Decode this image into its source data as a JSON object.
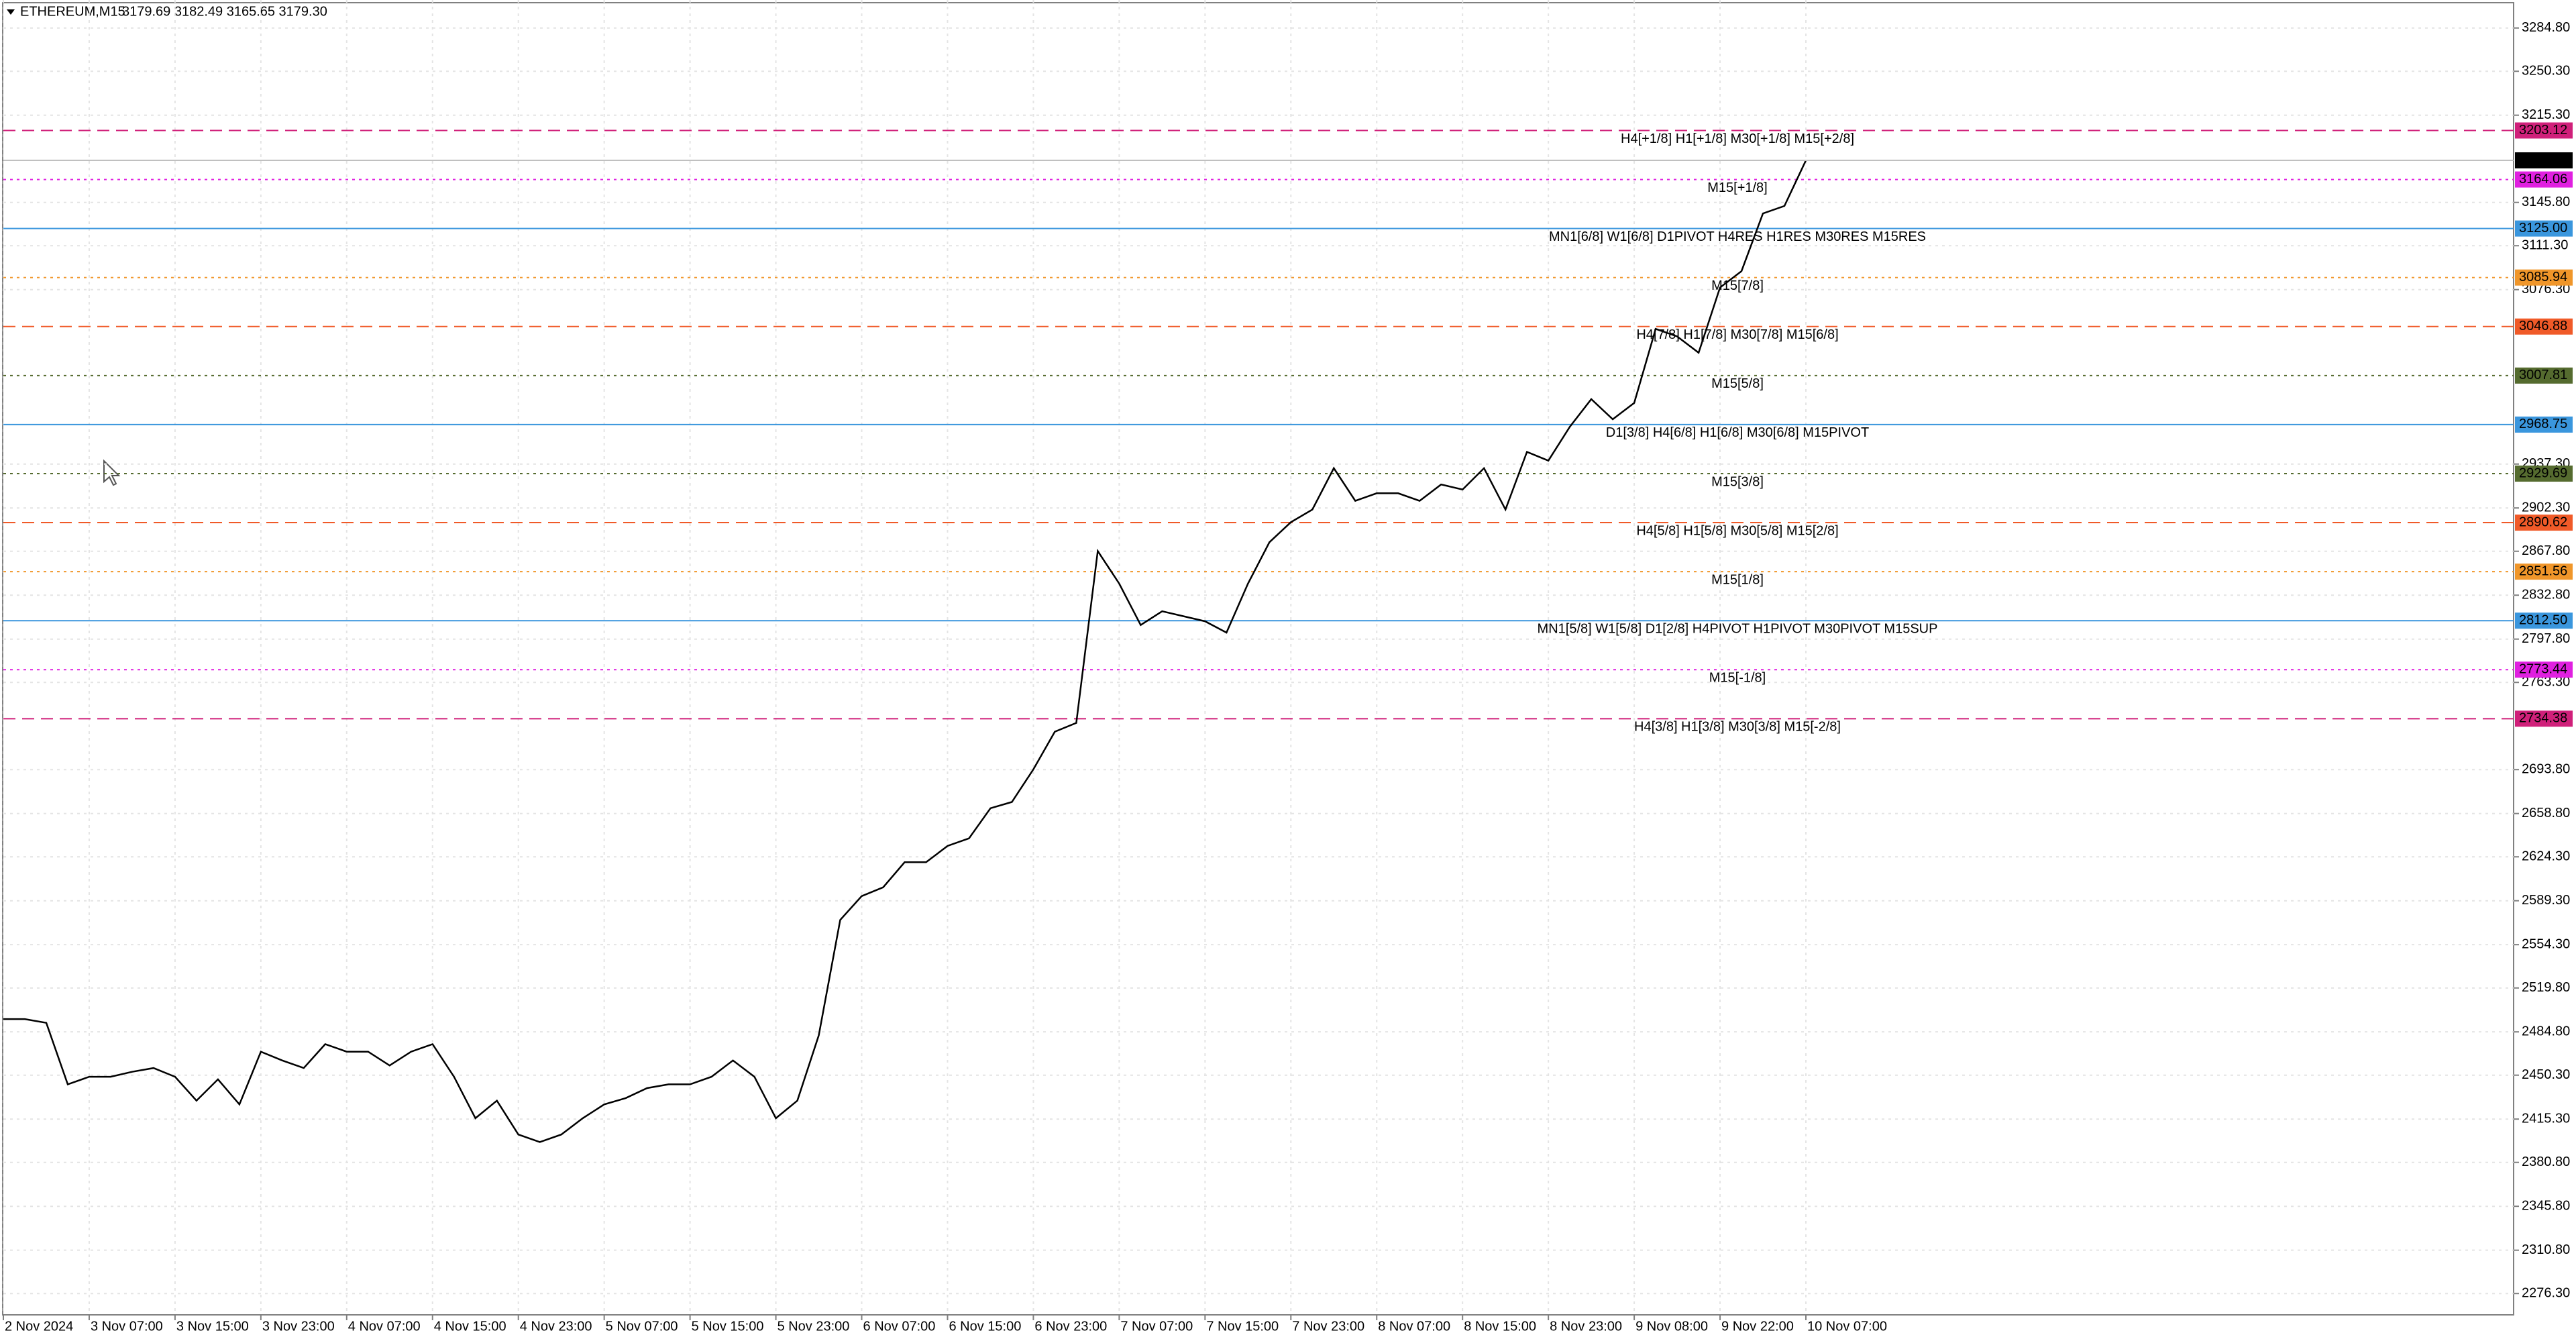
{
  "chart_data": {
    "type": "line",
    "title": "ETHEREUM,M15",
    "ohlc": "3179.69 3182.49 3165.65 3179.30",
    "color": "#000000",
    "grid": true,
    "ylim": [
      2259.3,
      3307.1
    ],
    "yticks": [
      {
        "value": 3284.8,
        "label": "3284.80"
      },
      {
        "value": 3250.3,
        "label": "3250.30"
      },
      {
        "value": 3215.3,
        "label": "3215.30"
      },
      {
        "value": 3145.8,
        "label": "3145.80"
      },
      {
        "value": 3111.3,
        "label": "3111.30"
      },
      {
        "value": 3076.3,
        "label": "3076.30"
      },
      {
        "value": 2937.3,
        "label": "2937.30"
      },
      {
        "value": 2902.3,
        "label": "2902.30"
      },
      {
        "value": 2867.8,
        "label": "2867.80"
      },
      {
        "value": 2832.8,
        "label": "2832.80"
      },
      {
        "value": 2797.8,
        "label": "2797.80"
      },
      {
        "value": 2763.3,
        "label": "2763.30"
      },
      {
        "value": 2693.8,
        "label": "2693.80"
      },
      {
        "value": 2658.8,
        "label": "2658.80"
      },
      {
        "value": 2624.3,
        "label": "2624.30"
      },
      {
        "value": 2589.3,
        "label": "2589.30"
      },
      {
        "value": 2554.3,
        "label": "2554.30"
      },
      {
        "value": 2519.8,
        "label": "2519.80"
      },
      {
        "value": 2484.8,
        "label": "2484.80"
      },
      {
        "value": 2450.3,
        "label": "2450.30"
      },
      {
        "value": 2415.3,
        "label": "2415.30"
      },
      {
        "value": 2380.8,
        "label": "2380.80"
      },
      {
        "value": 2345.8,
        "label": "2345.80"
      },
      {
        "value": 2310.8,
        "label": "2310.80"
      },
      {
        "value": 2276.3,
        "label": "2276.30"
      }
    ],
    "categories": [
      "2 Nov 2024",
      null,
      null,
      null,
      "3 Nov 07:00",
      null,
      null,
      null,
      "3 Nov 15:00",
      null,
      null,
      null,
      "3 Nov 23:00",
      null,
      null,
      null,
      "4 Nov 07:00",
      null,
      null,
      null,
      "4 Nov 15:00",
      null,
      null,
      null,
      "4 Nov 23:00",
      null,
      null,
      null,
      "5 Nov 07:00",
      null,
      null,
      null,
      "5 Nov 15:00",
      null,
      null,
      null,
      "5 Nov 23:00",
      null,
      null,
      null,
      "6 Nov 07:00",
      null,
      null,
      null,
      "6 Nov 15:00",
      null,
      null,
      null,
      "6 Nov 23:00",
      null,
      null,
      null,
      "7 Nov 07:00",
      null,
      null,
      null,
      "7 Nov 15:00",
      null,
      null,
      null,
      "7 Nov 23:00",
      null,
      null,
      null,
      "8 Nov 07:00",
      null,
      null,
      null,
      "8 Nov 15:00",
      null,
      null,
      null,
      "8 Nov 23:00",
      null,
      null,
      null,
      "9 Nov 08:00",
      null,
      null,
      null,
      "9 Nov 22:00",
      null,
      null,
      null,
      "10 Nov 07:00"
    ],
    "values": [
      2495,
      2495,
      2492,
      2443,
      2449,
      2449,
      2453,
      2456,
      2449,
      2430,
      2447,
      2427,
      2469,
      2462,
      2456,
      2475,
      2469,
      2469,
      2458,
      2469,
      2475,
      2449,
      2416,
      2430,
      2403,
      2397,
      2403,
      2416,
      2427,
      2432,
      2440,
      2443,
      2443,
      2449,
      2462,
      2449,
      2416,
      2430,
      2482,
      2574,
      2593,
      2600,
      2620,
      2620,
      2633,
      2639,
      2663,
      2668,
      2694,
      2724,
      2731,
      2868,
      2842,
      2809,
      2820,
      2816,
      2812,
      2803,
      2842,
      2875,
      2891,
      2901,
      2934,
      2908,
      2914,
      2914,
      2908,
      2921,
      2917,
      2934,
      2901,
      2947,
      2940,
      2967,
      2989,
      2973,
      2986,
      3045,
      3039,
      3026,
      3078,
      3091,
      3137,
      3143,
      3179.3
    ],
    "last_price": {
      "value": 3179.3,
      "label": "3179.30"
    },
    "levels": [
      {
        "value": 3203.12,
        "value_label": "3203.12",
        "label": "H4[+1/8] H1[+1/8] M30[+1/8] M15[+2/8]",
        "color": "#d0207a",
        "dash": "dashed"
      },
      {
        "value": 3164.06,
        "value_label": "3164.06",
        "label": "M15[+1/8]",
        "color": "#e020e0",
        "dash": "dotted"
      },
      {
        "value": 3125.0,
        "value_label": "3125.00",
        "label": "MN1[6/8] W1[6/8] D1PIVOT H4RES H1RES M30RES M15RES",
        "color": "#3a96dd",
        "dash": "solid"
      },
      {
        "value": 3085.94,
        "value_label": "3085.94",
        "label": "M15[7/8]",
        "color": "#f0962a",
        "dash": "dotted"
      },
      {
        "value": 3046.88,
        "value_label": "3046.88",
        "label": "H4[7/8] H1[7/8] M30[7/8] M15[6/8]",
        "color": "#f05a28",
        "dash": "dashed"
      },
      {
        "value": 3007.81,
        "value_label": "3007.81",
        "label": "M15[5/8]",
        "color": "#556b2f",
        "dash": "dotted"
      },
      {
        "value": 2968.75,
        "value_label": "2968.75",
        "label": "D1[3/8] H4[6/8] H1[6/8] M30[6/8] M15PIVOT",
        "color": "#3a96dd",
        "dash": "solid"
      },
      {
        "value": 2929.69,
        "value_label": "2929.69",
        "label": "M15[3/8]",
        "color": "#556b2f",
        "dash": "dotted"
      },
      {
        "value": 2890.62,
        "value_label": "2890.62",
        "label": "H4[5/8] H1[5/8] M30[5/8] M15[2/8]",
        "color": "#f05a28",
        "dash": "dashed"
      },
      {
        "value": 2851.56,
        "value_label": "2851.56",
        "label": "M15[1/8]",
        "color": "#f0962a",
        "dash": "dotted"
      },
      {
        "value": 2812.5,
        "value_label": "2812.50",
        "label": "MN1[5/8] W1[5/8] D1[2/8] H4PIVOT H1PIVOT M30PIVOT M15SUP",
        "color": "#3a96dd",
        "dash": "solid"
      },
      {
        "value": 2773.44,
        "value_label": "2773.44",
        "label": "M15[-1/8]",
        "color": "#e020e0",
        "dash": "dotted"
      },
      {
        "value": 2734.38,
        "value_label": "2734.38",
        "label": "H4[3/8] H1[3/8] M30[3/8] M15[-2/8]",
        "color": "#d0207a",
        "dash": "dashed"
      }
    ]
  }
}
